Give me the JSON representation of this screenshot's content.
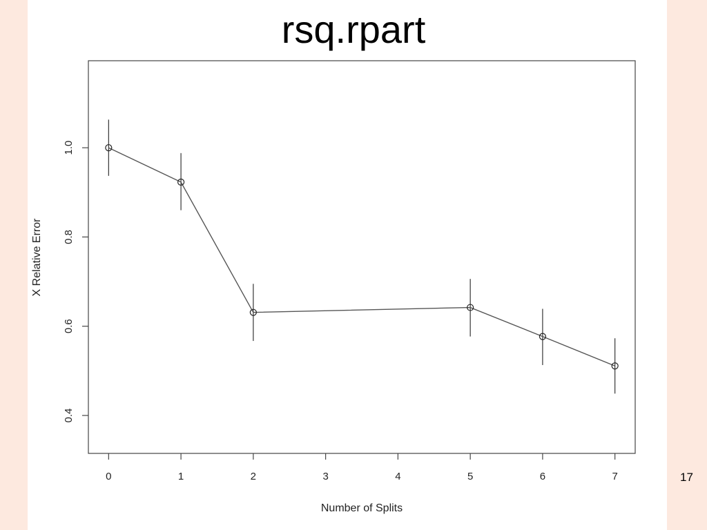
{
  "slide": {
    "title": "rsq.rpart",
    "page_number": "17"
  },
  "chart_data": {
    "type": "line",
    "title": "",
    "xlabel": "Number of Splits",
    "ylabel": "X Relative Error",
    "x": [
      0,
      1,
      2,
      5,
      6,
      7
    ],
    "y": [
      1.0,
      0.923,
      0.631,
      0.642,
      0.577,
      0.511
    ],
    "y_err_low": [
      0.937,
      0.86,
      0.567,
      0.577,
      0.513,
      0.449
    ],
    "y_err_high": [
      1.063,
      0.988,
      0.695,
      0.706,
      0.639,
      0.573
    ],
    "x_ticks": [
      0,
      1,
      2,
      3,
      4,
      5,
      6,
      7
    ],
    "x_tick_labels": [
      "0",
      "1",
      "2",
      "3",
      "4",
      "5",
      "6",
      "7"
    ],
    "y_ticks": [
      0.4,
      0.6,
      0.8,
      1.0
    ],
    "y_tick_labels": [
      "0.4",
      "0.6",
      "0.8",
      "1.0"
    ],
    "xlim": [
      -0.28,
      7.28
    ],
    "ylim": [
      0.315,
      1.195
    ],
    "grid": false,
    "legend": "none",
    "colors": {
      "line": "#555555",
      "marker": "#222222",
      "frame": "#444444"
    }
  }
}
